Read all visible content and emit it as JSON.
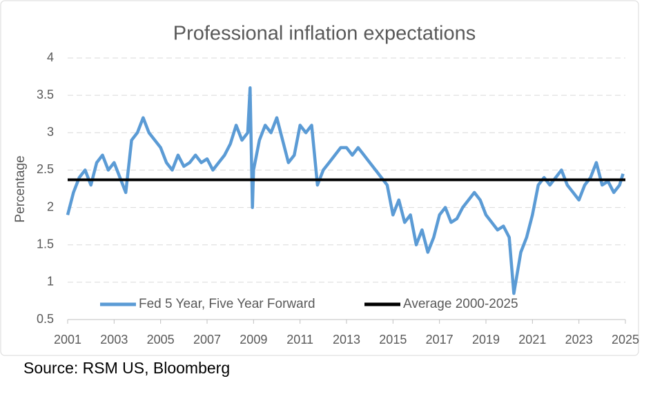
{
  "chart_data": {
    "type": "line",
    "title": "Professional inflation expectations",
    "y_label": "Percentage",
    "source": "Source: RSM US, Bloomberg",
    "xlim": [
      2001,
      2025
    ],
    "xticks": [
      2001,
      2003,
      2005,
      2007,
      2009,
      2011,
      2013,
      2015,
      2017,
      2019,
      2021,
      2023,
      2025
    ],
    "ylim": [
      0.5,
      4
    ],
    "yticks": [
      0.5,
      1,
      1.5,
      2,
      2.5,
      3,
      3.5,
      4
    ],
    "grid": true,
    "legend": "bottom",
    "series": [
      {
        "name": "Fed 5 Year, Five Year Forward",
        "color": "#5b9bd5",
        "x": [
          2001,
          2001.25,
          2001.5,
          2001.75,
          2002,
          2002.25,
          2002.5,
          2002.75,
          2003,
          2003.25,
          2003.5,
          2003.75,
          2004,
          2004.25,
          2004.5,
          2004.75,
          2005,
          2005.25,
          2005.5,
          2005.75,
          2006,
          2006.25,
          2006.5,
          2006.75,
          2007,
          2007.25,
          2007.5,
          2007.75,
          2008,
          2008.25,
          2008.5,
          2008.75,
          2008.85,
          2008.95,
          2009,
          2009.25,
          2009.5,
          2009.75,
          2010,
          2010.25,
          2010.5,
          2010.75,
          2011,
          2011.25,
          2011.5,
          2011.75,
          2012,
          2012.25,
          2012.5,
          2012.75,
          2013,
          2013.25,
          2013.5,
          2013.75,
          2014,
          2014.25,
          2014.5,
          2014.75,
          2015,
          2015.25,
          2015.5,
          2015.75,
          2016,
          2016.25,
          2016.5,
          2016.75,
          2017,
          2017.25,
          2017.5,
          2017.75,
          2018,
          2018.25,
          2018.5,
          2018.75,
          2019,
          2019.25,
          2019.5,
          2019.75,
          2020,
          2020.2,
          2020.5,
          2020.75,
          2021,
          2021.25,
          2021.5,
          2021.75,
          2022,
          2022.25,
          2022.5,
          2022.75,
          2023,
          2023.25,
          2023.5,
          2023.75,
          2024,
          2024.25,
          2024.5,
          2024.75,
          2024.9
        ],
        "values": [
          1.9,
          2.2,
          2.4,
          2.5,
          2.3,
          2.6,
          2.7,
          2.5,
          2.6,
          2.4,
          2.2,
          2.9,
          3.0,
          3.2,
          3.0,
          2.9,
          2.8,
          2.6,
          2.5,
          2.7,
          2.55,
          2.6,
          2.7,
          2.6,
          2.65,
          2.5,
          2.6,
          2.7,
          2.85,
          3.1,
          2.9,
          3.0,
          3.6,
          2.0,
          2.5,
          2.9,
          3.1,
          3.0,
          3.2,
          2.9,
          2.6,
          2.7,
          3.1,
          3.0,
          3.1,
          2.3,
          2.5,
          2.6,
          2.7,
          2.8,
          2.8,
          2.7,
          2.8,
          2.7,
          2.6,
          2.5,
          2.4,
          2.3,
          1.9,
          2.1,
          1.8,
          1.9,
          1.5,
          1.7,
          1.4,
          1.6,
          1.9,
          2.0,
          1.8,
          1.85,
          2.0,
          2.1,
          2.2,
          2.1,
          1.9,
          1.8,
          1.7,
          1.75,
          1.6,
          0.85,
          1.4,
          1.6,
          1.9,
          2.3,
          2.4,
          2.3,
          2.4,
          2.5,
          2.3,
          2.2,
          2.1,
          2.3,
          2.4,
          2.6,
          2.3,
          2.35,
          2.2,
          2.3,
          2.45
        ]
      },
      {
        "name": "Average 2000-2025",
        "color": "#000000",
        "x": [
          2001,
          2025
        ],
        "values": [
          2.37,
          2.37
        ]
      }
    ]
  }
}
